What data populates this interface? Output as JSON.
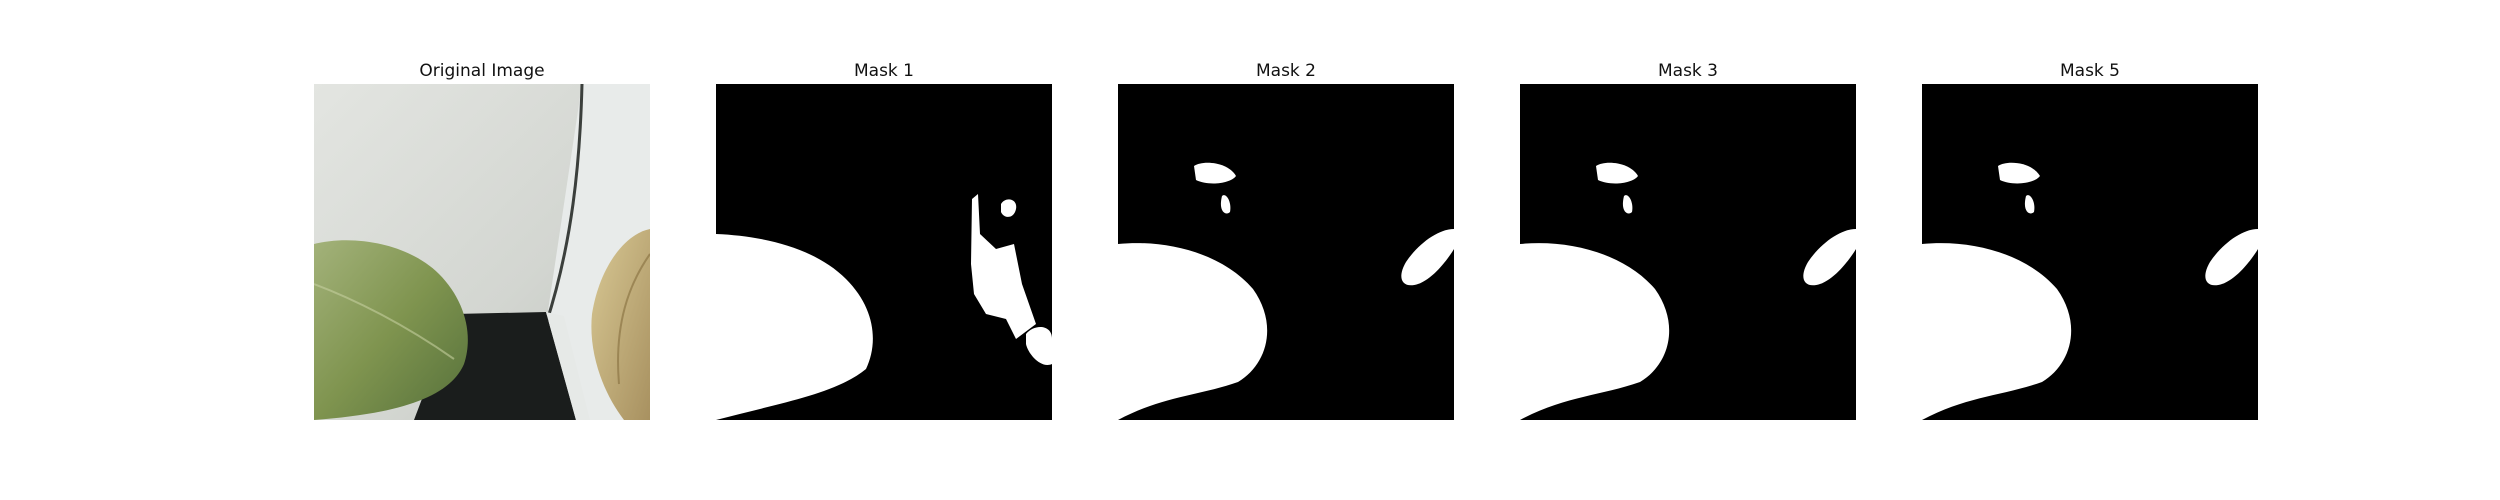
{
  "panels": [
    {
      "title": "Original Image",
      "kind": "photo"
    },
    {
      "title": "Mask 1",
      "kind": "mask"
    },
    {
      "title": "Mask 2",
      "kind": "mask"
    },
    {
      "title": "Mask 3",
      "kind": "mask"
    },
    {
      "title": "Mask 5",
      "kind": "mask"
    }
  ],
  "colors": {
    "mask_background": "#000000",
    "mask_foreground": "#ffffff",
    "wall": "#d9dcd6",
    "leaf_green": "#8c9e62",
    "leaf_dry": "#cbb98a",
    "dark_gap": "#1a1d1c"
  }
}
